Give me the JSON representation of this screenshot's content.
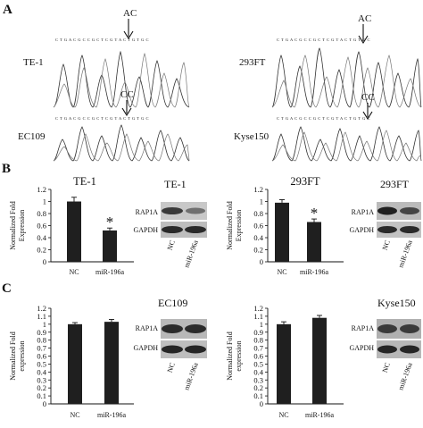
{
  "panels": {
    "a": "A",
    "b": "B",
    "c": "C"
  },
  "sequencing": [
    {
      "sample": "TE-1",
      "genotype": "AC"
    },
    {
      "sample": "293FT",
      "genotype": "AC"
    },
    {
      "sample": "EC109",
      "genotype": "CC"
    },
    {
      "sample": "Kyse150",
      "genotype": "CC"
    }
  ],
  "blots": [
    {
      "title": "TE-1",
      "rows": [
        "RAP1A",
        "GAPDH"
      ],
      "lanes": [
        "NC",
        "miR-196a"
      ]
    },
    {
      "title": "293FT",
      "rows": [
        "RAP1A",
        "GAPDH"
      ],
      "lanes": [
        "NC",
        "miR-196a"
      ]
    },
    {
      "title": "EC109",
      "rows": [
        "RAP1A",
        "GAPDH"
      ],
      "lanes": [
        "NC",
        "miR-196a"
      ]
    },
    {
      "title": "Kyse150",
      "rows": [
        "RAP1A",
        "GAPDH"
      ],
      "lanes": [
        "NC",
        "miR-196a"
      ]
    }
  ],
  "chart_data": [
    {
      "type": "bar",
      "title": "TE-1",
      "ylabel": "Normalized Fold Expression",
      "categories": [
        "NC",
        "miR-196a"
      ],
      "values": [
        1.0,
        0.52
      ],
      "errors": [
        0.07,
        0.04
      ],
      "ylim": [
        0,
        1.2
      ],
      "ticks": [
        0,
        0.2,
        0.4,
        0.6,
        0.8,
        1,
        1.2
      ],
      "significance": [
        "",
        "*"
      ]
    },
    {
      "type": "bar",
      "title": "293FT",
      "ylabel": "Normalized Fold Expression",
      "categories": [
        "NC",
        "miR-196a"
      ],
      "values": [
        0.98,
        0.66
      ],
      "errors": [
        0.05,
        0.05
      ],
      "ylim": [
        0,
        1.2
      ],
      "ticks": [
        0,
        0.2,
        0.4,
        0.6,
        0.8,
        1,
        1.2
      ],
      "significance": [
        "",
        "*"
      ]
    },
    {
      "type": "bar",
      "title": "",
      "ylabel": "Normalized Fold expression",
      "categories": [
        "NC",
        "miR-196a"
      ],
      "values": [
        1.0,
        1.03
      ],
      "errors": [
        0.02,
        0.03
      ],
      "ylim": [
        0,
        1.2
      ],
      "ticks": [
        0,
        0.1,
        0.2,
        0.3,
        0.4,
        0.5,
        0.6,
        0.7,
        0.8,
        0.9,
        1,
        1.1,
        1.2
      ],
      "significance": [
        "",
        ""
      ]
    },
    {
      "type": "bar",
      "title": "",
      "ylabel": "Normalized Fold expression",
      "categories": [
        "NC",
        "miR-196a"
      ],
      "values": [
        1.0,
        1.08
      ],
      "errors": [
        0.03,
        0.03
      ],
      "ylim": [
        0,
        1.2
      ],
      "ticks": [
        0,
        0.1,
        0.2,
        0.3,
        0.4,
        0.5,
        0.6,
        0.7,
        0.8,
        0.9,
        1,
        1.1,
        1.2
      ],
      "significance": [
        "",
        ""
      ]
    }
  ]
}
